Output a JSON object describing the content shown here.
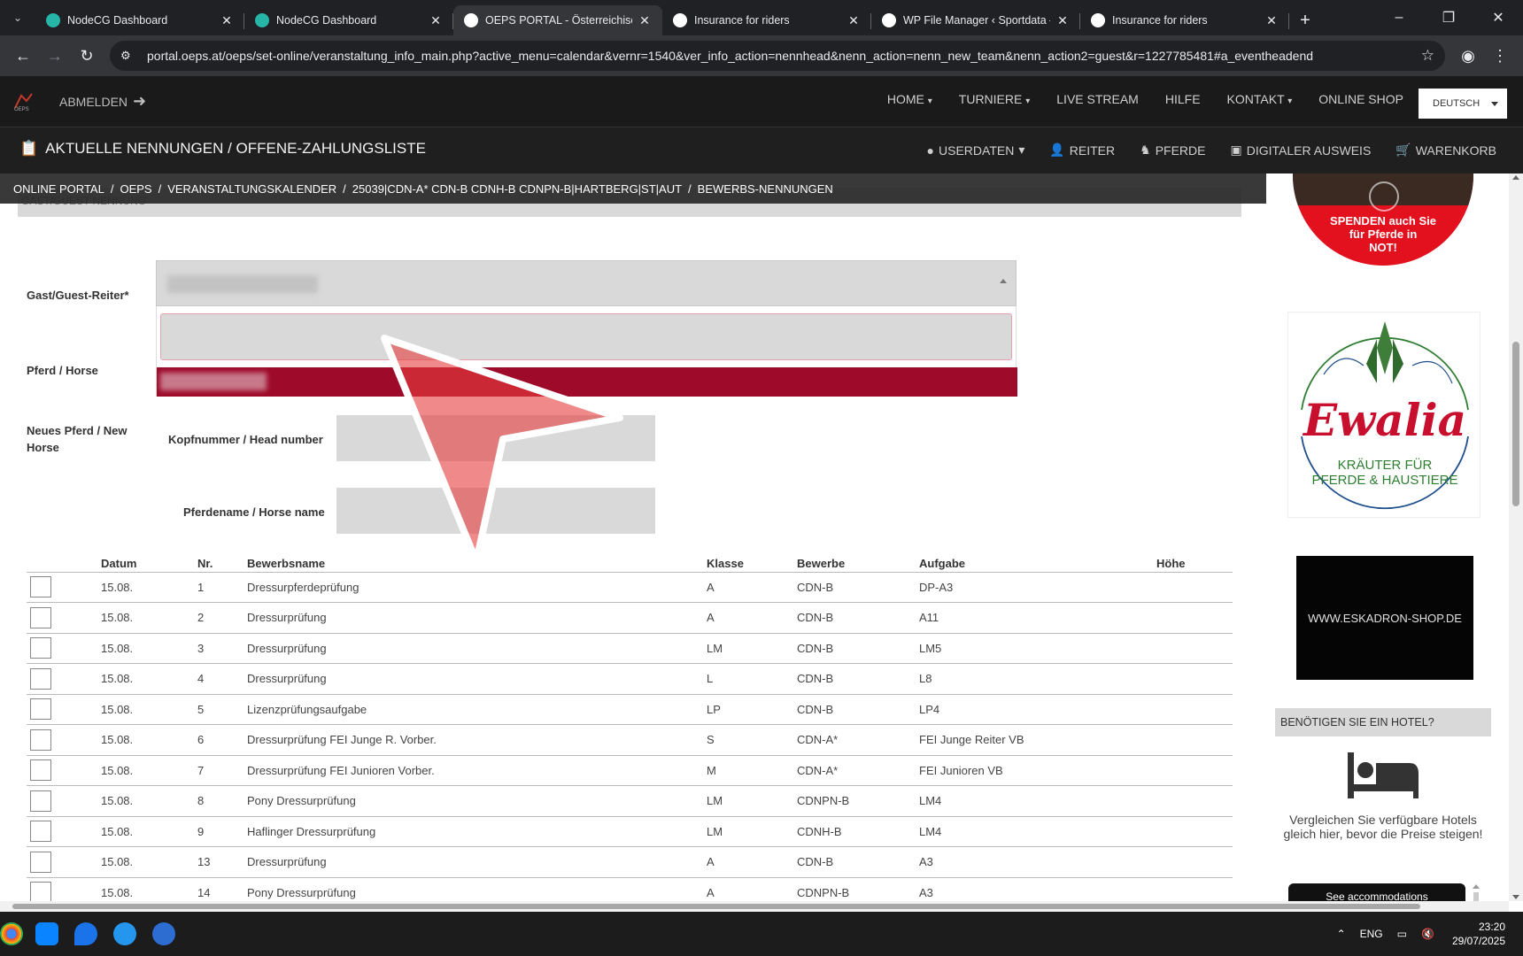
{
  "browser": {
    "tabs": [
      {
        "title": "NodeCG Dashboard",
        "favicon_color": "#26b5a7",
        "active": false
      },
      {
        "title": "NodeCG Dashboard",
        "favicon_color": "#26b5a7",
        "active": false
      },
      {
        "title": "OEPS PORTAL - Österreichischer",
        "favicon_color": "#ffffff",
        "active": true
      },
      {
        "title": "Insurance for riders",
        "favicon_color": "#ffffff",
        "active": false
      },
      {
        "title": "WP File Manager ‹ Sportdata —",
        "favicon_color": "#ffffff",
        "active": false
      },
      {
        "title": "Insurance for riders",
        "favicon_color": "#ffffff",
        "active": false
      }
    ],
    "url": "portal.oeps.at/oeps/set-online/veranstaltung_info_main.php?active_menu=calendar&vernr=1540&ver_info_action=nennhead&nenn_action=nenn_new_team&nenn_action2=guest&r=1227785481#a_eventheadend"
  },
  "header": {
    "logout": "ABMELDEN",
    "nav": [
      "HOME",
      "TURNIERE",
      "LIVE STREAM",
      "HILFE",
      "KONTAKT",
      "ONLINE SHOP"
    ],
    "language": "DEUTSCH",
    "page_title": "AKTUELLE NENNUNGEN / OFFENE-ZAHLUNGSLISTE",
    "subnav": [
      "USERDATEN",
      "REITER",
      "PFERDE",
      "DIGITALER AUSWEIS",
      "WARENKORB"
    ]
  },
  "breadcrumb": [
    "ONLINE PORTAL",
    "OEPS",
    "VERANSTALTUNGSKALENDER",
    "25039|CDN-A* CDN-B CDNH-B CDNPN-B|HARTBERG|ST|AUT",
    "BEWERBS-NENNUNGEN"
  ],
  "form": {
    "section": "GAST/GUEST NENNUNG",
    "guest_rider_label": "Gast/Guest-Reiter*",
    "horse_label": "Pferd / Horse",
    "new_horse_label": "Neues Pferd / New Horse",
    "head_number_label": "Kopfnummer / Head number",
    "horse_name_label": "Pferdename / Horse name"
  },
  "table": {
    "headers": [
      "",
      "Datum",
      "Nr.",
      "Bewerbsname",
      "Klasse",
      "Bewerbe",
      "Aufgabe",
      "Höhe"
    ],
    "rows": [
      [
        "15.08.",
        "1",
        "Dressurpferdeprüfung",
        "A",
        "CDN-B",
        "DP-A3",
        ""
      ],
      [
        "15.08.",
        "2",
        "Dressurprüfung",
        "A",
        "CDN-B",
        "A11",
        ""
      ],
      [
        "15.08.",
        "3",
        "Dressurprüfung",
        "LM",
        "CDN-B",
        "LM5",
        ""
      ],
      [
        "15.08.",
        "4",
        "Dressurprüfung",
        "L",
        "CDN-B",
        "L8",
        ""
      ],
      [
        "15.08.",
        "5",
        "Lizenzprüfungsaufgabe",
        "LP",
        "CDN-B",
        "LP4",
        ""
      ],
      [
        "15.08.",
        "6",
        "Dressurprüfung FEI Junge R. Vorber.",
        "S",
        "CDN-A*",
        "FEI Junge Reiter VB",
        ""
      ],
      [
        "15.08.",
        "7",
        "Dressurprüfung FEI Junioren Vorber.",
        "M",
        "CDN-A*",
        "FEI Junioren VB",
        ""
      ],
      [
        "15.08.",
        "8",
        "Pony Dressurprüfung",
        "LM",
        "CDNPN-B",
        "LM4",
        ""
      ],
      [
        "15.08.",
        "9",
        "Haflinger Dressurprüfung",
        "LM",
        "CDNH-B",
        "LM4",
        ""
      ],
      [
        "15.08.",
        "13",
        "Dressurprüfung",
        "A",
        "CDN-B",
        "A3",
        ""
      ],
      [
        "15.08.",
        "14",
        "Pony Dressurprüfung",
        "A",
        "CDNPN-B",
        "A3",
        ""
      ]
    ]
  },
  "sidebar": {
    "donate_text": [
      "SPENDEN auch Sie",
      "für Pferde in",
      "NOT!"
    ],
    "ewalia_logo": "Ewalia",
    "ewalia_tagline": [
      "KRÄUTER FÜR",
      "PFERDE & HAUSTIERE"
    ],
    "eskadron": "WWW.ESKADRON-SHOP.DE",
    "hotel_header": "BENÖTIGEN SIE EIN HOTEL?",
    "hotel_text": "Vergleichen Sie verfügbare Hotels gleich hier, bevor die Preise steigen!",
    "hotel_button": "See accommodations"
  },
  "taskbar": {
    "lang": "ENG",
    "time": "23:20",
    "date": "29/07/2025"
  }
}
